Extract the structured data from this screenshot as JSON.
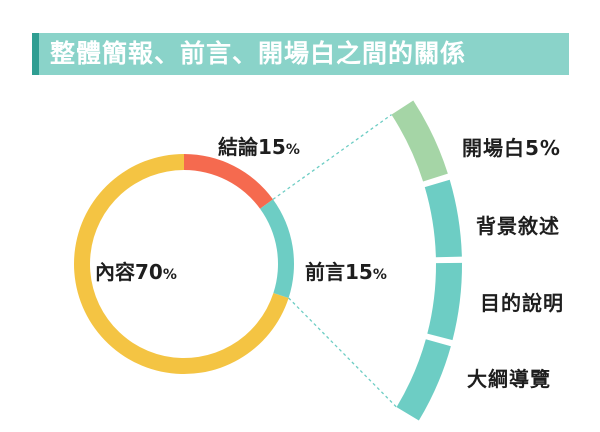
{
  "title": "整體簡報、前言、開場白之間的關係",
  "colors": {
    "banner": "#8ad3c9",
    "banner_accent": "#2f9e92",
    "content": "#f4c443",
    "conclusion": "#f56a4f",
    "intro": "#6dcdc4",
    "opening": "#a5d5a6",
    "connector": "#6dcdc4"
  },
  "chart_data": {
    "type": "pie",
    "style": "donut",
    "slices": [
      {
        "label": "內容",
        "value": 70,
        "value_text": "70",
        "unit": "%",
        "color": "#f4c443"
      },
      {
        "label": "結論",
        "value": 15,
        "value_text": "15",
        "unit": "%",
        "color": "#f56a4f"
      },
      {
        "label": "前言",
        "value": 15,
        "value_text": "15",
        "unit": "%",
        "color": "#6dcdc4"
      }
    ]
  },
  "intro_breakdown": [
    {
      "label": "開場白5%",
      "color": "#a5d5a6"
    },
    {
      "label": "背景敘述",
      "color": "#6dcdc4"
    },
    {
      "label": "目的說明",
      "color": "#6dcdc4"
    },
    {
      "label": "大綱導覽",
      "color": "#6dcdc4"
    }
  ]
}
